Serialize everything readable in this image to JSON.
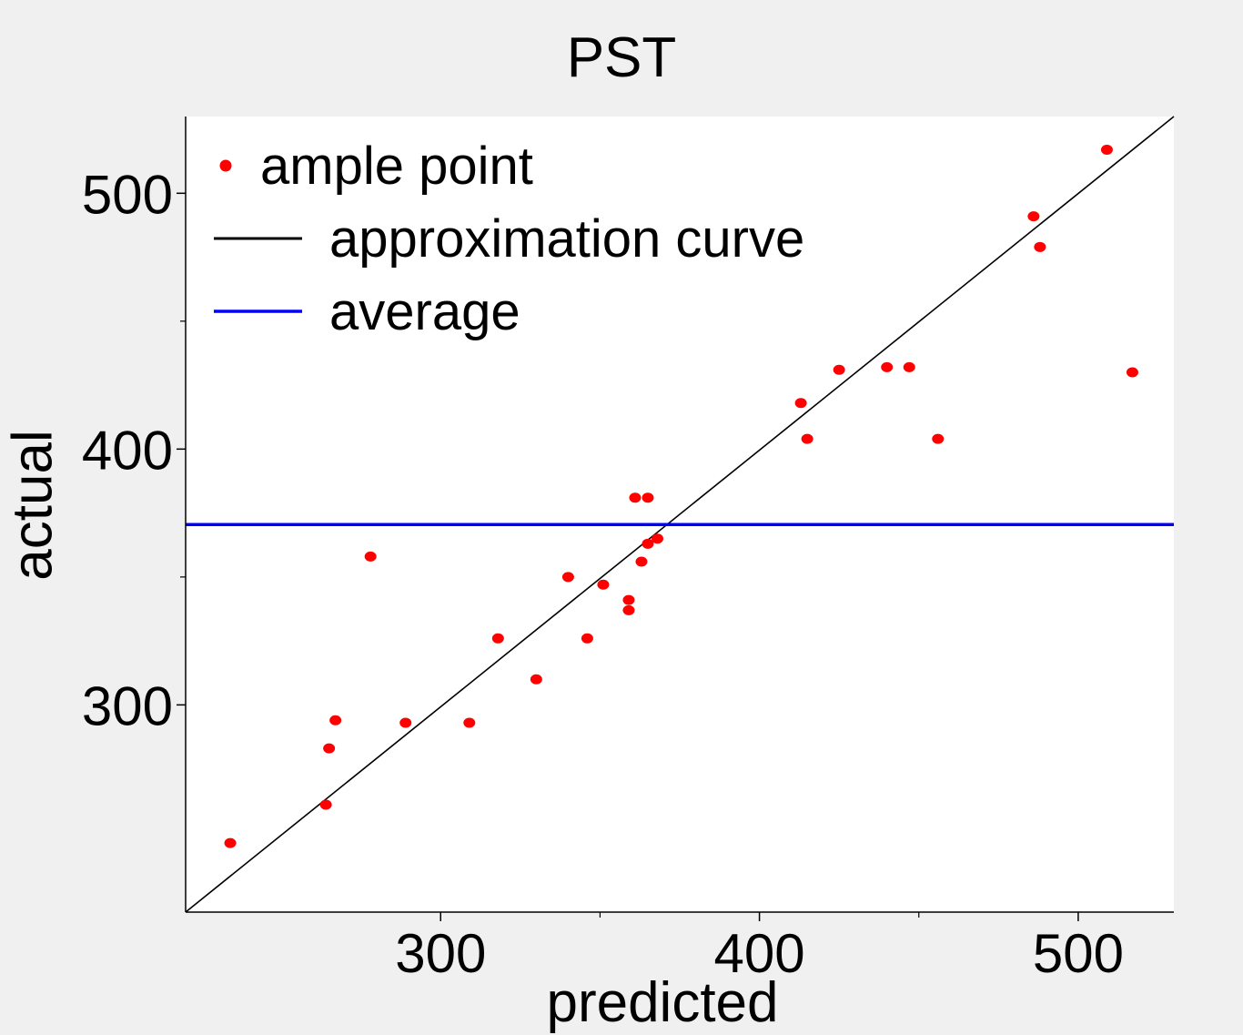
{
  "chart_data": {
    "type": "scatter",
    "title": "PST",
    "xlabel": "predicted",
    "ylabel": "actual",
    "xlim": [
      220,
      530
    ],
    "ylim": [
      219,
      530
    ],
    "x_ticks": [
      300,
      400,
      500
    ],
    "y_ticks": [
      300,
      400,
      500
    ],
    "x_minor_ticks": [
      350,
      450
    ],
    "y_minor_ticks": [
      350,
      450
    ],
    "grid": false,
    "legend_position": "top-left",
    "series": [
      {
        "name": "ample point",
        "kind": "points",
        "color": "#ff0000",
        "points": [
          [
            234,
            246
          ],
          [
            264,
            261
          ],
          [
            265,
            283
          ],
          [
            267,
            294
          ],
          [
            278,
            358
          ],
          [
            289,
            293
          ],
          [
            309,
            293
          ],
          [
            318,
            326
          ],
          [
            330,
            310
          ],
          [
            340,
            350
          ],
          [
            346,
            326
          ],
          [
            351,
            347
          ],
          [
            359,
            341
          ],
          [
            359,
            337
          ],
          [
            361,
            381
          ],
          [
            363,
            356
          ],
          [
            365,
            381
          ],
          [
            365,
            363
          ],
          [
            368,
            365
          ],
          [
            413,
            418
          ],
          [
            415,
            404
          ],
          [
            425,
            431
          ],
          [
            440,
            432
          ],
          [
            447,
            432
          ],
          [
            456,
            404
          ],
          [
            486,
            491
          ],
          [
            488,
            479
          ],
          [
            509,
            517
          ],
          [
            517,
            430
          ]
        ]
      },
      {
        "name": "approximation curve",
        "kind": "line",
        "color": "#000000",
        "points": [
          [
            220,
            219
          ],
          [
            530,
            530
          ]
        ]
      },
      {
        "name": "average",
        "kind": "hline",
        "color": "#0000ff",
        "y": 370.5
      }
    ]
  }
}
